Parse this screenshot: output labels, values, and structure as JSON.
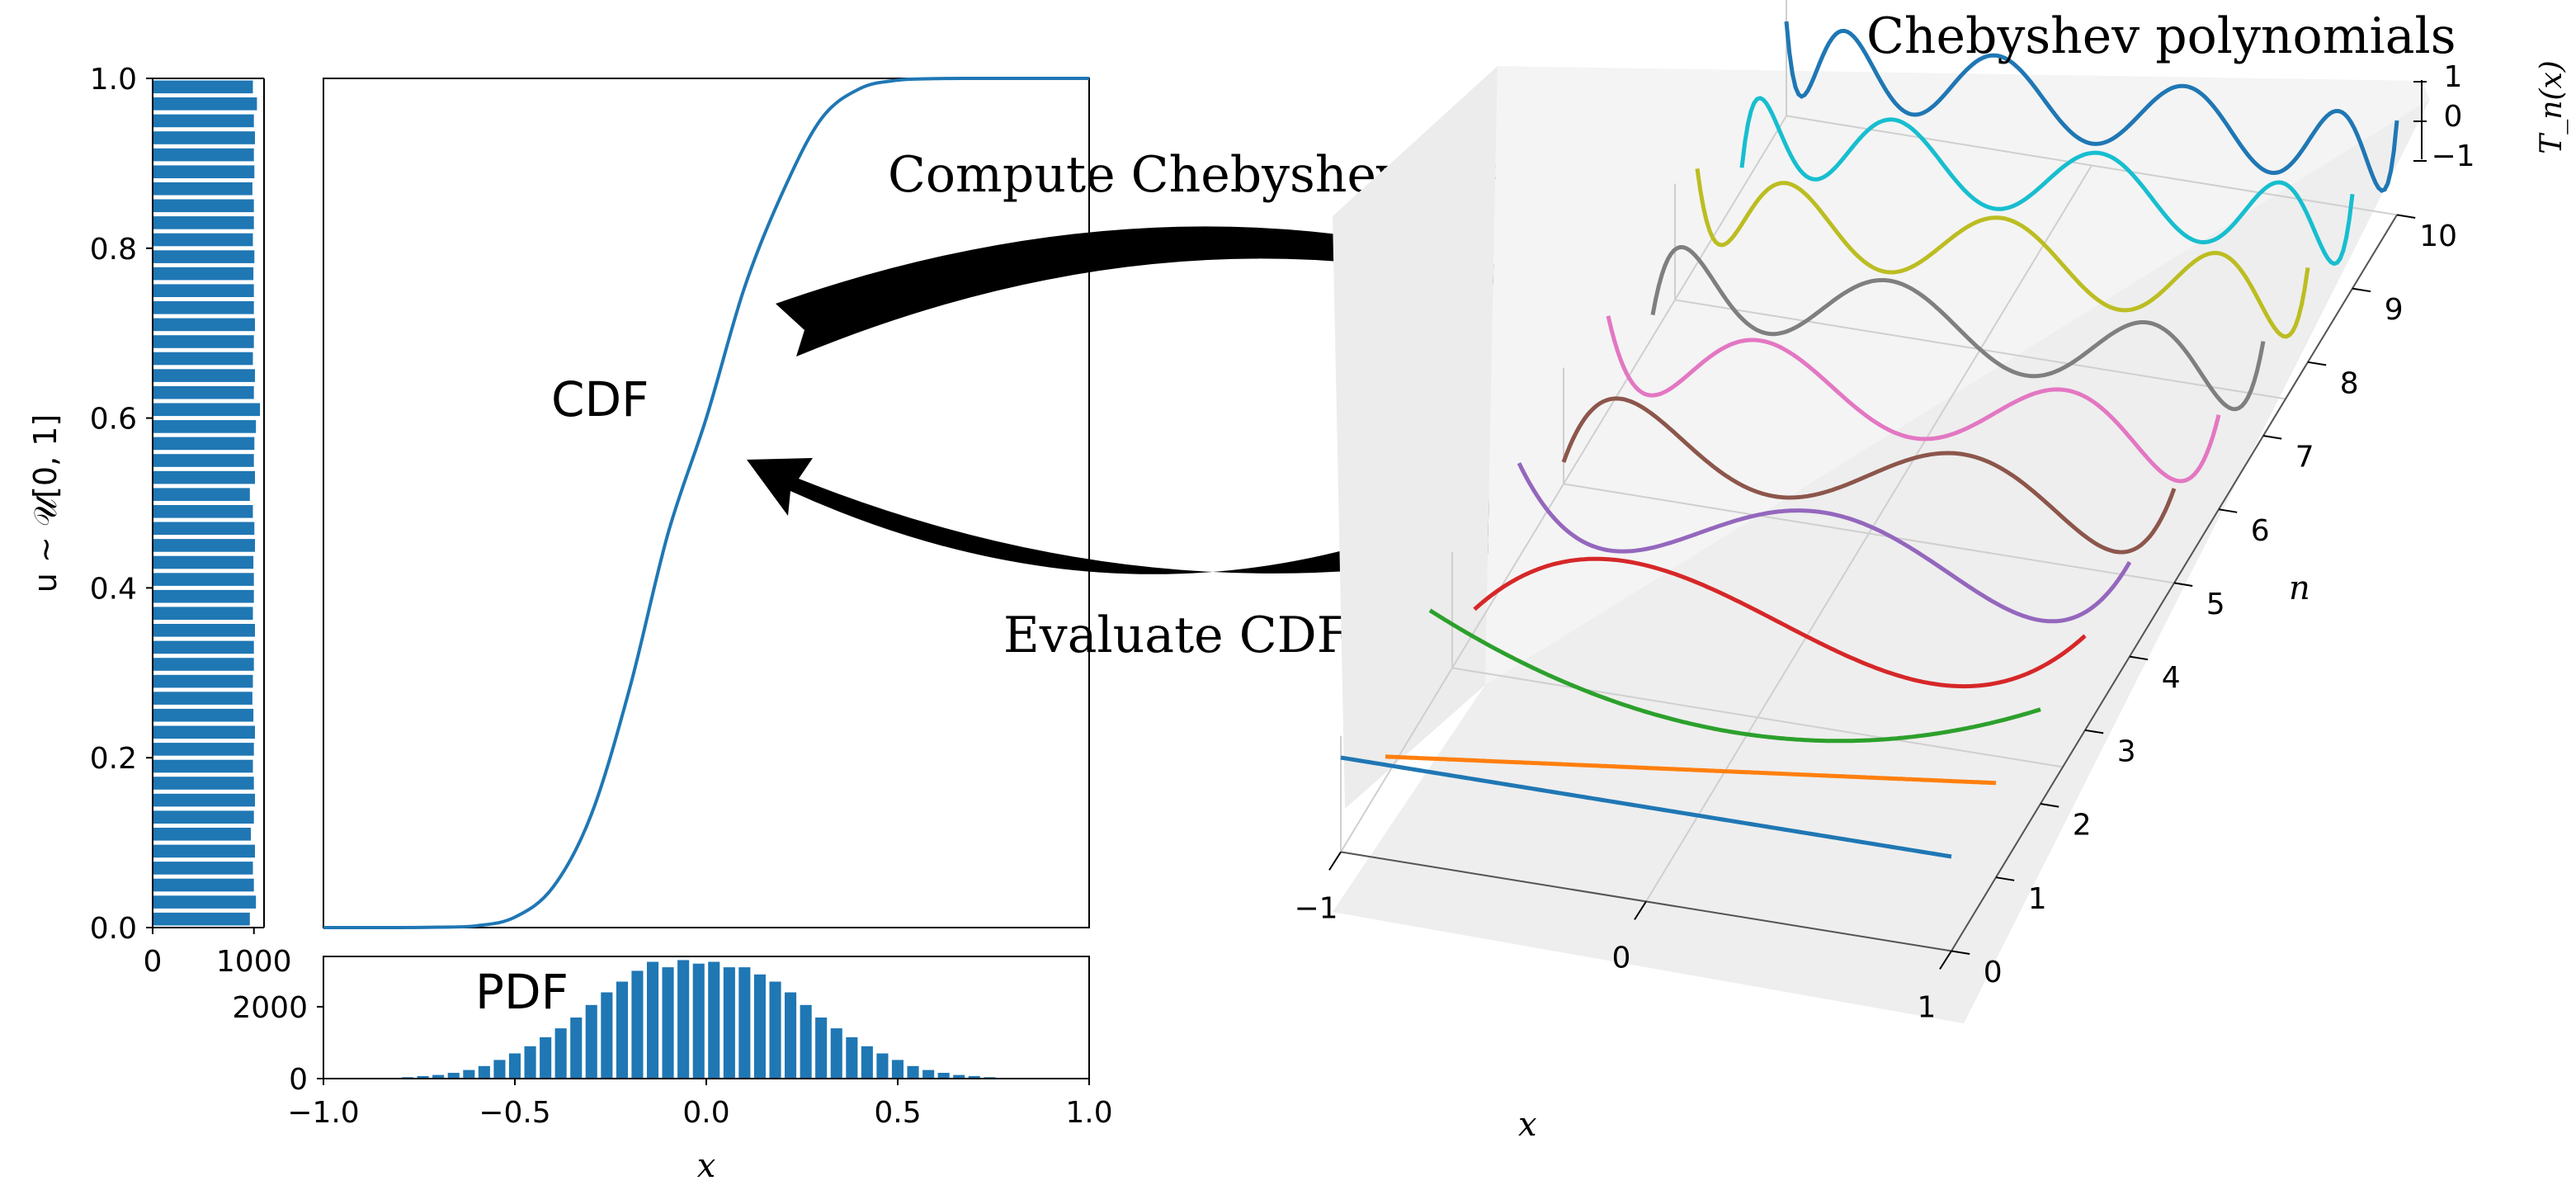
{
  "chart_data": [
    {
      "type": "bar",
      "orientation": "horizontal",
      "name": "uniform-histogram",
      "ylabel": "u ~ 𝒰[0, 1]",
      "ylim": [
        0,
        1
      ],
      "xlim": [
        0,
        1100
      ],
      "yticks": [
        "0.0",
        "0.2",
        "0.4",
        "0.6",
        "0.8",
        "1.0"
      ],
      "xticks": [
        "0",
        "1000"
      ],
      "bins": 50,
      "values": [
        960,
        1020,
        1000,
        990,
        1010,
        970,
        1000,
        1010,
        1000,
        990,
        1000,
        1010,
        995,
        985,
        990,
        1000,
        1000,
        1010,
        990,
        1000,
        1000,
        995,
        1010,
        1005,
        990,
        960,
        1010,
        1000,
        1005,
        1020,
        1060,
        1000,
        1010,
        990,
        1000,
        1010,
        1000,
        1000,
        995,
        1005,
        990,
        1000,
        1000,
        985,
        1005,
        1000,
        1010,
        1000,
        1030,
        990
      ]
    },
    {
      "type": "line",
      "name": "cdf",
      "label": "CDF",
      "xlim": [
        -1,
        1
      ],
      "ylim": [
        0,
        1
      ],
      "color": "#1f77b4",
      "x": [
        -1.0,
        -0.9,
        -0.8,
        -0.7,
        -0.6,
        -0.5,
        -0.4,
        -0.3,
        -0.2,
        -0.1,
        0.0,
        0.1,
        0.2,
        0.3,
        0.4,
        0.5,
        0.6,
        0.7,
        0.8,
        0.9,
        1.0
      ],
      "y": [
        0.0,
        0.0,
        0.0,
        0.0005,
        0.0021,
        0.0122,
        0.0478,
        0.1335,
        0.2819,
        0.4641,
        0.6,
        0.754,
        0.8665,
        0.9522,
        0.9878,
        0.9979,
        0.9997,
        1.0,
        1.0,
        1.0,
        1.0
      ]
    },
    {
      "type": "bar",
      "name": "pdf-histogram",
      "label": "PDF",
      "xlabel": "x",
      "xlim": [
        -1,
        1
      ],
      "ylim": [
        0,
        3400
      ],
      "xticks": [
        "−1.0",
        "−0.5",
        "0.0",
        "0.5",
        "1.0"
      ],
      "yticks": [
        "0",
        "2000"
      ],
      "bin_width": 0.04,
      "centers": [
        -0.82,
        -0.78,
        -0.74,
        -0.7,
        -0.66,
        -0.62,
        -0.58,
        -0.54,
        -0.5,
        -0.46,
        -0.42,
        -0.38,
        -0.34,
        -0.3,
        -0.26,
        -0.22,
        -0.18,
        -0.14,
        -0.1,
        -0.06,
        -0.02,
        0.02,
        0.06,
        0.1,
        0.14,
        0.18,
        0.22,
        0.26,
        0.3,
        0.34,
        0.38,
        0.42,
        0.46,
        0.5,
        0.54,
        0.58,
        0.62,
        0.66,
        0.7,
        0.74,
        0.78,
        0.82
      ],
      "values": [
        20,
        40,
        70,
        100,
        160,
        240,
        350,
        520,
        700,
        900,
        1150,
        1400,
        1700,
        2050,
        2400,
        2700,
        3000,
        3250,
        3100,
        3300,
        3200,
        3250,
        3100,
        3100,
        2900,
        2700,
        2400,
        2050,
        1700,
        1400,
        1150,
        900,
        700,
        520,
        350,
        240,
        160,
        100,
        70,
        40,
        20,
        10
      ]
    },
    {
      "type": "line3d",
      "name": "chebyshev",
      "title": "Chebyshev polynomials",
      "xlabel": "x",
      "ylabel": "n",
      "zlabel": "T_n(x)",
      "xticks": [
        "−1",
        "0",
        "1"
      ],
      "yticks": [
        "0",
        "1",
        "2",
        "3",
        "4",
        "5",
        "6",
        "7",
        "8",
        "9",
        "10"
      ],
      "zticks": [
        "1",
        "0",
        "−1"
      ],
      "xlim": [
        -1,
        1
      ],
      "ylim": [
        0,
        10
      ],
      "zlim": [
        -1,
        1
      ],
      "series": [
        {
          "n": 0,
          "color": "#1f77b4"
        },
        {
          "n": 1,
          "color": "#ff7f0e"
        },
        {
          "n": 2,
          "color": "#2ca02c"
        },
        {
          "n": 3,
          "color": "#d62728"
        },
        {
          "n": 4,
          "color": "#9467bd"
        },
        {
          "n": 5,
          "color": "#8c564b"
        },
        {
          "n": 6,
          "color": "#e377c2"
        },
        {
          "n": 7,
          "color": "#7f7f7f"
        },
        {
          "n": 8,
          "color": "#bcbd22"
        },
        {
          "n": 9,
          "color": "#17becf"
        },
        {
          "n": 10,
          "color": "#1f77b4"
        }
      ]
    }
  ],
  "annotations": {
    "compute_label": "Compute Chebyshev coeff.",
    "evaluate_label": "Evaluate CDF",
    "cdf_label": "CDF",
    "pdf_label": "PDF"
  },
  "colors": {
    "bar": "#1f77b4",
    "arrow": "#000000"
  }
}
